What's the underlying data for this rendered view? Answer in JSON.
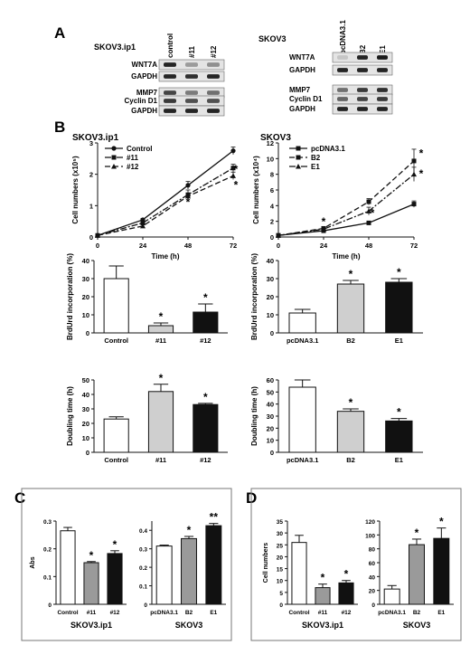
{
  "panels": {
    "A": "A",
    "B": "B",
    "C": "C",
    "D": "D"
  },
  "blots": {
    "left": {
      "cell_line": "SKOV3.ip1",
      "lanes": [
        "control",
        "#11",
        "#12"
      ],
      "rows": [
        "WNT7A",
        "GAPDH",
        "MMP7",
        "Cyclin D1",
        "GAPDH"
      ]
    },
    "right": {
      "cell_line": "SKOV3",
      "lanes": [
        "pcDNA3.1",
        "B2",
        "E1"
      ],
      "rows": [
        "WNT7A",
        "GAPDH",
        "MMP7",
        "Cyclin D1",
        "GAPDH"
      ]
    }
  },
  "chart_data": [
    {
      "id": "B-growth-left",
      "type": "line",
      "title": "SKOV3.ip1",
      "xlabel": "Time (h)",
      "ylabel": "Cell numbers (x10⁵)",
      "x": [
        0,
        24,
        48,
        72
      ],
      "xlim": [
        0,
        72
      ],
      "ylim": [
        0,
        3
      ],
      "xticks": [
        0,
        24,
        48,
        72
      ],
      "yticks": [
        0,
        1,
        2,
        3
      ],
      "series": [
        {
          "name": "Control",
          "values": [
            0.05,
            0.55,
            1.65,
            2.75
          ],
          "errors": [
            0,
            0.04,
            0.12,
            0.12
          ],
          "style": "solid",
          "marker": "circle"
        },
        {
          "name": "#11",
          "values": [
            0.05,
            0.45,
            1.35,
            2.2
          ],
          "errors": [
            0,
            0.04,
            0.15,
            0.12
          ],
          "style": "dashdot",
          "marker": "square"
        },
        {
          "name": "#12",
          "values": [
            0.05,
            0.35,
            1.3,
            1.95
          ],
          "errors": [
            0,
            0.04,
            0.1,
            0.12
          ],
          "style": "dashed",
          "marker": "triangle"
        }
      ],
      "annotations": [
        "*",
        "*",
        "*"
      ]
    },
    {
      "id": "B-growth-right",
      "type": "line",
      "title": "SKOV3",
      "xlabel": "Time (h)",
      "ylabel": "Cell numbers (x10⁴)",
      "x": [
        0,
        24,
        48,
        72
      ],
      "xlim": [
        0,
        72
      ],
      "ylim": [
        0,
        12
      ],
      "xticks": [
        0,
        24,
        48,
        72
      ],
      "yticks": [
        0,
        2,
        4,
        6,
        8,
        10,
        12
      ],
      "series": [
        {
          "name": "pcDNA3.1",
          "values": [
            0.2,
            0.8,
            1.8,
            4.2
          ],
          "errors": [
            0,
            0.1,
            0.2,
            0.4
          ],
          "style": "solid",
          "marker": "square"
        },
        {
          "name": "B2",
          "values": [
            0.2,
            1.1,
            4.5,
            9.7
          ],
          "errors": [
            0,
            0.1,
            0.4,
            1.5
          ],
          "style": "dashed",
          "marker": "square"
        },
        {
          "name": "E1",
          "values": [
            0.2,
            1.0,
            3.3,
            8.0
          ],
          "errors": [
            0,
            0.1,
            0.5,
            0.9
          ],
          "style": "dashdot",
          "marker": "triangle"
        }
      ],
      "annotations": [
        "*",
        "*",
        "*",
        "*"
      ]
    },
    {
      "id": "B-brdu-left",
      "type": "bar",
      "ylabel": "BrdUrd incorporation (%)",
      "categories": [
        "Control",
        "#11",
        "#12"
      ],
      "values": [
        30,
        4,
        11.5
      ],
      "errors": [
        7,
        1.5,
        4.5
      ],
      "ylim": [
        0,
        40
      ],
      "yticks": [
        0,
        10,
        20,
        30,
        40
      ],
      "fills": [
        "#ffffff",
        "#cfcfcf",
        "#111111"
      ],
      "significance": [
        "",
        "*",
        "*"
      ]
    },
    {
      "id": "B-brdu-right",
      "type": "bar",
      "ylabel": "BrdUrd incorporation (%)",
      "categories": [
        "pcDNA3.1",
        "B2",
        "E1"
      ],
      "values": [
        11,
        27,
        28
      ],
      "errors": [
        2,
        2,
        2
      ],
      "ylim": [
        0,
        40
      ],
      "yticks": [
        0,
        10,
        20,
        30,
        40
      ],
      "fills": [
        "#ffffff",
        "#cfcfcf",
        "#111111"
      ],
      "significance": [
        "",
        "*",
        "*"
      ]
    },
    {
      "id": "B-doubling-left",
      "type": "bar",
      "ylabel": "Doubling time (h)",
      "categories": [
        "Control",
        "#11",
        "#12"
      ],
      "values": [
        23,
        42,
        33
      ],
      "errors": [
        1.5,
        5,
        0.8
      ],
      "ylim": [
        0,
        50
      ],
      "yticks": [
        0,
        10,
        20,
        30,
        40,
        50
      ],
      "fills": [
        "#ffffff",
        "#cfcfcf",
        "#111111"
      ],
      "significance": [
        "",
        "*",
        "*"
      ]
    },
    {
      "id": "B-doubling-right",
      "type": "bar",
      "ylabel": "Doubling time (h)",
      "categories": [
        "pcDNA3.1",
        "B2",
        "E1"
      ],
      "values": [
        54,
        34,
        26
      ],
      "errors": [
        6,
        2,
        2
      ],
      "ylim": [
        0,
        60
      ],
      "yticks": [
        0,
        10,
        20,
        30,
        40,
        50,
        60
      ],
      "fills": [
        "#ffffff",
        "#cfcfcf",
        "#111111"
      ],
      "significance": [
        "",
        "*",
        "*"
      ]
    },
    {
      "id": "C-left",
      "type": "bar",
      "ylabel": "Abs",
      "xlabel": "SKOV3.ip1",
      "categories": [
        "Control",
        "#11",
        "#12"
      ],
      "values": [
        0.265,
        0.15,
        0.183
      ],
      "errors": [
        0.012,
        0.004,
        0.01
      ],
      "ylim": [
        0,
        0.3
      ],
      "yticks": [
        "0",
        "0.1",
        "0.2",
        "0.3"
      ],
      "ytick_values": [
        0,
        0.1,
        0.2,
        0.3
      ],
      "fills": [
        "#ffffff",
        "#9a9a9a",
        "#111111"
      ],
      "significance": [
        "",
        "*",
        "*"
      ]
    },
    {
      "id": "C-right",
      "type": "bar",
      "xlabel": "SKOV3",
      "categories": [
        "pcDNA3.1",
        "B2",
        "E1"
      ],
      "values": [
        0.315,
        0.355,
        0.425
      ],
      "errors": [
        0.005,
        0.012,
        0.012
      ],
      "ylim": [
        0,
        0.45
      ],
      "yticks": [
        "0",
        "0.1",
        "0.2",
        "0.3",
        "0.4"
      ],
      "ytick_values": [
        0,
        0.1,
        0.2,
        0.3,
        0.4
      ],
      "fills": [
        "#ffffff",
        "#9a9a9a",
        "#111111"
      ],
      "significance": [
        "",
        "*",
        "**"
      ]
    },
    {
      "id": "D-left",
      "type": "bar",
      "ylabel": "Cell numbers",
      "xlabel": "SKOV3.ip1",
      "categories": [
        "Control",
        "#11",
        "#12"
      ],
      "values": [
        26,
        7,
        9
      ],
      "errors": [
        3,
        1.5,
        1
      ],
      "ylim": [
        0,
        35
      ],
      "yticks": [
        "0",
        "5",
        "10",
        "15",
        "20",
        "25",
        "30",
        "35"
      ],
      "ytick_values": [
        0,
        5,
        10,
        15,
        20,
        25,
        30,
        35
      ],
      "fills": [
        "#ffffff",
        "#9a9a9a",
        "#111111"
      ],
      "significance": [
        "",
        "*",
        "*"
      ]
    },
    {
      "id": "D-right",
      "type": "bar",
      "xlabel": "SKOV3",
      "categories": [
        "pcDNA3.1",
        "B2",
        "E1"
      ],
      "values": [
        22,
        86,
        95
      ],
      "errors": [
        5,
        8,
        15
      ],
      "ylim": [
        0,
        120
      ],
      "yticks": [
        "0",
        "20",
        "40",
        "60",
        "80",
        "100",
        "120"
      ],
      "ytick_values": [
        0,
        20,
        40,
        60,
        80,
        100,
        120
      ],
      "fills": [
        "#ffffff",
        "#9a9a9a",
        "#111111"
      ],
      "significance": [
        "",
        "*",
        "*"
      ]
    }
  ]
}
